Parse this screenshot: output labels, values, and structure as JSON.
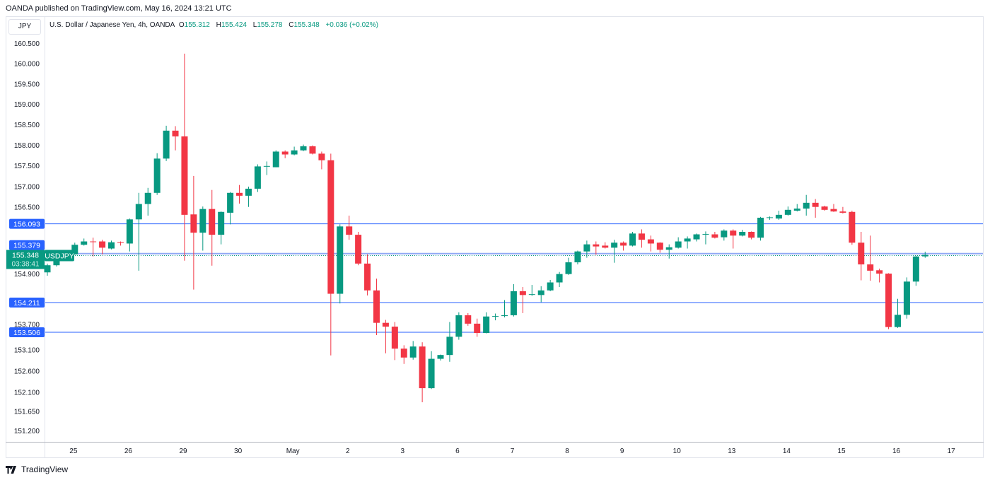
{
  "published": "OANDA published on TradingView.com, May 16, 2024 13:21 UTC",
  "currency_button": "JPY",
  "legend": {
    "title": "U.S. Dollar / Japanese Yen, 4h, OANDA",
    "o_label": "O",
    "o": "155.312",
    "h_label": "H",
    "h": "155.424",
    "l_label": "L",
    "l": "155.278",
    "c_label": "C",
    "c": "155.348",
    "change": "+0.036 (+0.02%)"
  },
  "current_price": {
    "value": "155.348",
    "countdown": "03:38:41",
    "symbol": "USDJPY",
    "price": 155.348
  },
  "brand": "TradingView",
  "colors": {
    "up": "#089981",
    "down": "#f23645",
    "level": "#2962ff",
    "level_light": "#90a8f5"
  },
  "chart_data": {
    "type": "candlestick",
    "title": "U.S. Dollar / Japanese Yen, 4h, OANDA",
    "scale": "log",
    "ylim": [
      151.2,
      160.5
    ],
    "y_ticks": [
      "160.500",
      "160.000",
      "159.500",
      "159.000",
      "158.500",
      "158.000",
      "157.500",
      "157.000",
      "156.500",
      "154.900",
      "153.700",
      "153.100",
      "152.600",
      "152.100",
      "151.650",
      "151.200"
    ],
    "x_labels": [
      {
        "label": "25",
        "index": 2.85
      },
      {
        "label": "26",
        "index": 8.85
      },
      {
        "label": "29",
        "index": 14.85
      },
      {
        "label": "30",
        "index": 20.85
      },
      {
        "label": "May",
        "index": 26.85
      },
      {
        "label": "2",
        "index": 32.85
      },
      {
        "label": "3",
        "index": 38.85
      },
      {
        "label": "6",
        "index": 44.85
      },
      {
        "label": "7",
        "index": 50.85
      },
      {
        "label": "8",
        "index": 56.85
      },
      {
        "label": "9",
        "index": 62.85
      },
      {
        "label": "10",
        "index": 68.85
      },
      {
        "label": "13",
        "index": 74.85
      },
      {
        "label": "14",
        "index": 80.85
      },
      {
        "label": "15",
        "index": 86.85
      },
      {
        "label": "16",
        "index": 92.85
      },
      {
        "label": "17",
        "index": 98.85
      }
    ],
    "levels": [
      {
        "label": "156.093",
        "value": 156.093
      },
      {
        "label": "155.379",
        "value": 155.379
      },
      {
        "label": "154.211",
        "value": 154.211
      },
      {
        "label": "153.506",
        "value": 153.506
      }
    ],
    "ohlc_fields": [
      "open",
      "high",
      "low",
      "close"
    ],
    "candles": [
      [
        154.93,
        155.14,
        154.85,
        155.1
      ],
      [
        155.1,
        155.28,
        155.07,
        155.24
      ],
      [
        155.23,
        155.31,
        155.21,
        155.28
      ],
      [
        155.36,
        155.64,
        155.35,
        155.59
      ],
      [
        155.59,
        155.74,
        155.57,
        155.67
      ],
      [
        155.67,
        155.76,
        155.31,
        155.66
      ],
      [
        155.67,
        155.71,
        155.36,
        155.52
      ],
      [
        155.5,
        155.69,
        155.48,
        155.65
      ],
      [
        155.65,
        155.67,
        155.57,
        155.64
      ],
      [
        155.62,
        156.22,
        155.43,
        156.2
      ],
      [
        156.2,
        156.84,
        154.97,
        156.57
      ],
      [
        156.57,
        156.96,
        156.29,
        156.84
      ],
      [
        156.84,
        157.8,
        156.79,
        157.67
      ],
      [
        157.67,
        158.47,
        157.61,
        158.35
      ],
      [
        158.35,
        158.46,
        157.87,
        158.21
      ],
      [
        158.21,
        160.24,
        155.21,
        156.31
      ],
      [
        156.32,
        157.25,
        154.52,
        155.88
      ],
      [
        155.88,
        156.51,
        155.45,
        156.45
      ],
      [
        156.45,
        156.91,
        155.09,
        155.83
      ],
      [
        155.83,
        156.39,
        155.6,
        156.38
      ],
      [
        156.36,
        156.86,
        156.08,
        156.84
      ],
      [
        156.84,
        157.03,
        156.58,
        156.77
      ],
      [
        156.77,
        156.99,
        156.5,
        156.94
      ],
      [
        156.94,
        157.53,
        156.86,
        157.48
      ],
      [
        157.48,
        157.6,
        157.27,
        157.49
      ],
      [
        157.46,
        157.87,
        157.46,
        157.84
      ],
      [
        157.84,
        157.87,
        157.68,
        157.77
      ],
      [
        157.77,
        157.96,
        157.75,
        157.87
      ],
      [
        157.87,
        158.01,
        157.85,
        157.97
      ],
      [
        157.97,
        157.99,
        157.77,
        157.79
      ],
      [
        157.79,
        157.84,
        157.41,
        157.63
      ],
      [
        157.63,
        157.79,
        152.96,
        154.42
      ],
      [
        154.42,
        156.08,
        154.19,
        156.03
      ],
      [
        156.03,
        156.29,
        155.71,
        155.83
      ],
      [
        155.83,
        155.9,
        155.1,
        155.14
      ],
      [
        155.14,
        155.36,
        154.38,
        154.5
      ],
      [
        154.5,
        154.78,
        153.44,
        153.73
      ],
      [
        153.73,
        153.8,
        153.01,
        153.64
      ],
      [
        153.64,
        153.75,
        152.85,
        153.12
      ],
      [
        153.12,
        153.2,
        152.76,
        152.91
      ],
      [
        152.91,
        153.3,
        152.86,
        153.17
      ],
      [
        153.17,
        153.27,
        151.86,
        152.19
      ],
      [
        152.19,
        153.06,
        152.17,
        152.88
      ],
      [
        152.88,
        152.98,
        152.84,
        152.97
      ],
      [
        152.97,
        153.75,
        152.81,
        153.4
      ],
      [
        153.4,
        153.98,
        153.33,
        153.91
      ],
      [
        153.91,
        153.96,
        153.66,
        153.71
      ],
      [
        153.71,
        153.83,
        153.4,
        153.49
      ],
      [
        153.49,
        153.98,
        153.48,
        153.88
      ],
      [
        153.88,
        153.95,
        153.79,
        153.89
      ],
      [
        153.89,
        154.27,
        153.86,
        153.91
      ],
      [
        153.91,
        154.65,
        153.88,
        154.48
      ],
      [
        154.48,
        154.58,
        153.96,
        154.39
      ],
      [
        154.4,
        154.63,
        154.37,
        154.41
      ],
      [
        154.39,
        154.6,
        154.22,
        154.5
      ],
      [
        154.5,
        154.75,
        154.48,
        154.69
      ],
      [
        154.69,
        154.94,
        154.58,
        154.89
      ],
      [
        154.89,
        155.28,
        154.87,
        155.17
      ],
      [
        155.17,
        155.45,
        155.12,
        155.43
      ],
      [
        155.43,
        155.69,
        155.28,
        155.6
      ],
      [
        155.6,
        155.67,
        155.35,
        155.55
      ],
      [
        155.57,
        155.65,
        155.5,
        155.52
      ],
      [
        155.52,
        155.71,
        155.16,
        155.64
      ],
      [
        155.64,
        155.67,
        155.45,
        155.57
      ],
      [
        155.57,
        155.9,
        155.55,
        155.86
      ],
      [
        155.86,
        155.96,
        155.52,
        155.71
      ],
      [
        155.72,
        155.81,
        155.43,
        155.62
      ],
      [
        155.64,
        155.65,
        155.4,
        155.47
      ],
      [
        155.47,
        155.6,
        155.26,
        155.53
      ],
      [
        155.52,
        155.77,
        155.5,
        155.67
      ],
      [
        155.67,
        155.79,
        155.5,
        155.74
      ],
      [
        155.72,
        155.86,
        155.67,
        155.84
      ],
      [
        155.84,
        155.91,
        155.6,
        155.85
      ],
      [
        155.84,
        155.9,
        155.74,
        155.76
      ],
      [
        155.77,
        155.96,
        155.69,
        155.93
      ],
      [
        155.93,
        155.96,
        155.5,
        155.81
      ],
      [
        155.81,
        155.95,
        155.79,
        155.9
      ],
      [
        155.9,
        155.91,
        155.72,
        155.76
      ],
      [
        155.76,
        156.26,
        155.69,
        156.24
      ],
      [
        156.24,
        156.27,
        156.19,
        156.25
      ],
      [
        156.22,
        156.41,
        156.19,
        156.31
      ],
      [
        156.31,
        156.51,
        156.29,
        156.43
      ],
      [
        156.41,
        156.57,
        156.39,
        156.46
      ],
      [
        156.46,
        156.79,
        156.29,
        156.6
      ],
      [
        156.6,
        156.69,
        156.24,
        156.5
      ],
      [
        156.51,
        156.53,
        156.41,
        156.43
      ],
      [
        156.45,
        156.57,
        156.38,
        156.39
      ],
      [
        156.39,
        156.5,
        156.34,
        156.36
      ],
      [
        156.38,
        156.41,
        155.59,
        155.64
      ],
      [
        155.64,
        155.9,
        154.74,
        155.12
      ],
      [
        155.12,
        155.81,
        154.73,
        154.97
      ],
      [
        154.98,
        155.02,
        154.69,
        154.9
      ],
      [
        154.9,
        154.91,
        153.58,
        153.63
      ],
      [
        153.63,
        154.3,
        153.61,
        153.92
      ],
      [
        153.92,
        154.81,
        153.83,
        154.71
      ],
      [
        154.71,
        155.33,
        154.61,
        155.31
      ],
      [
        155.312,
        155.424,
        155.278,
        155.348
      ]
    ]
  }
}
